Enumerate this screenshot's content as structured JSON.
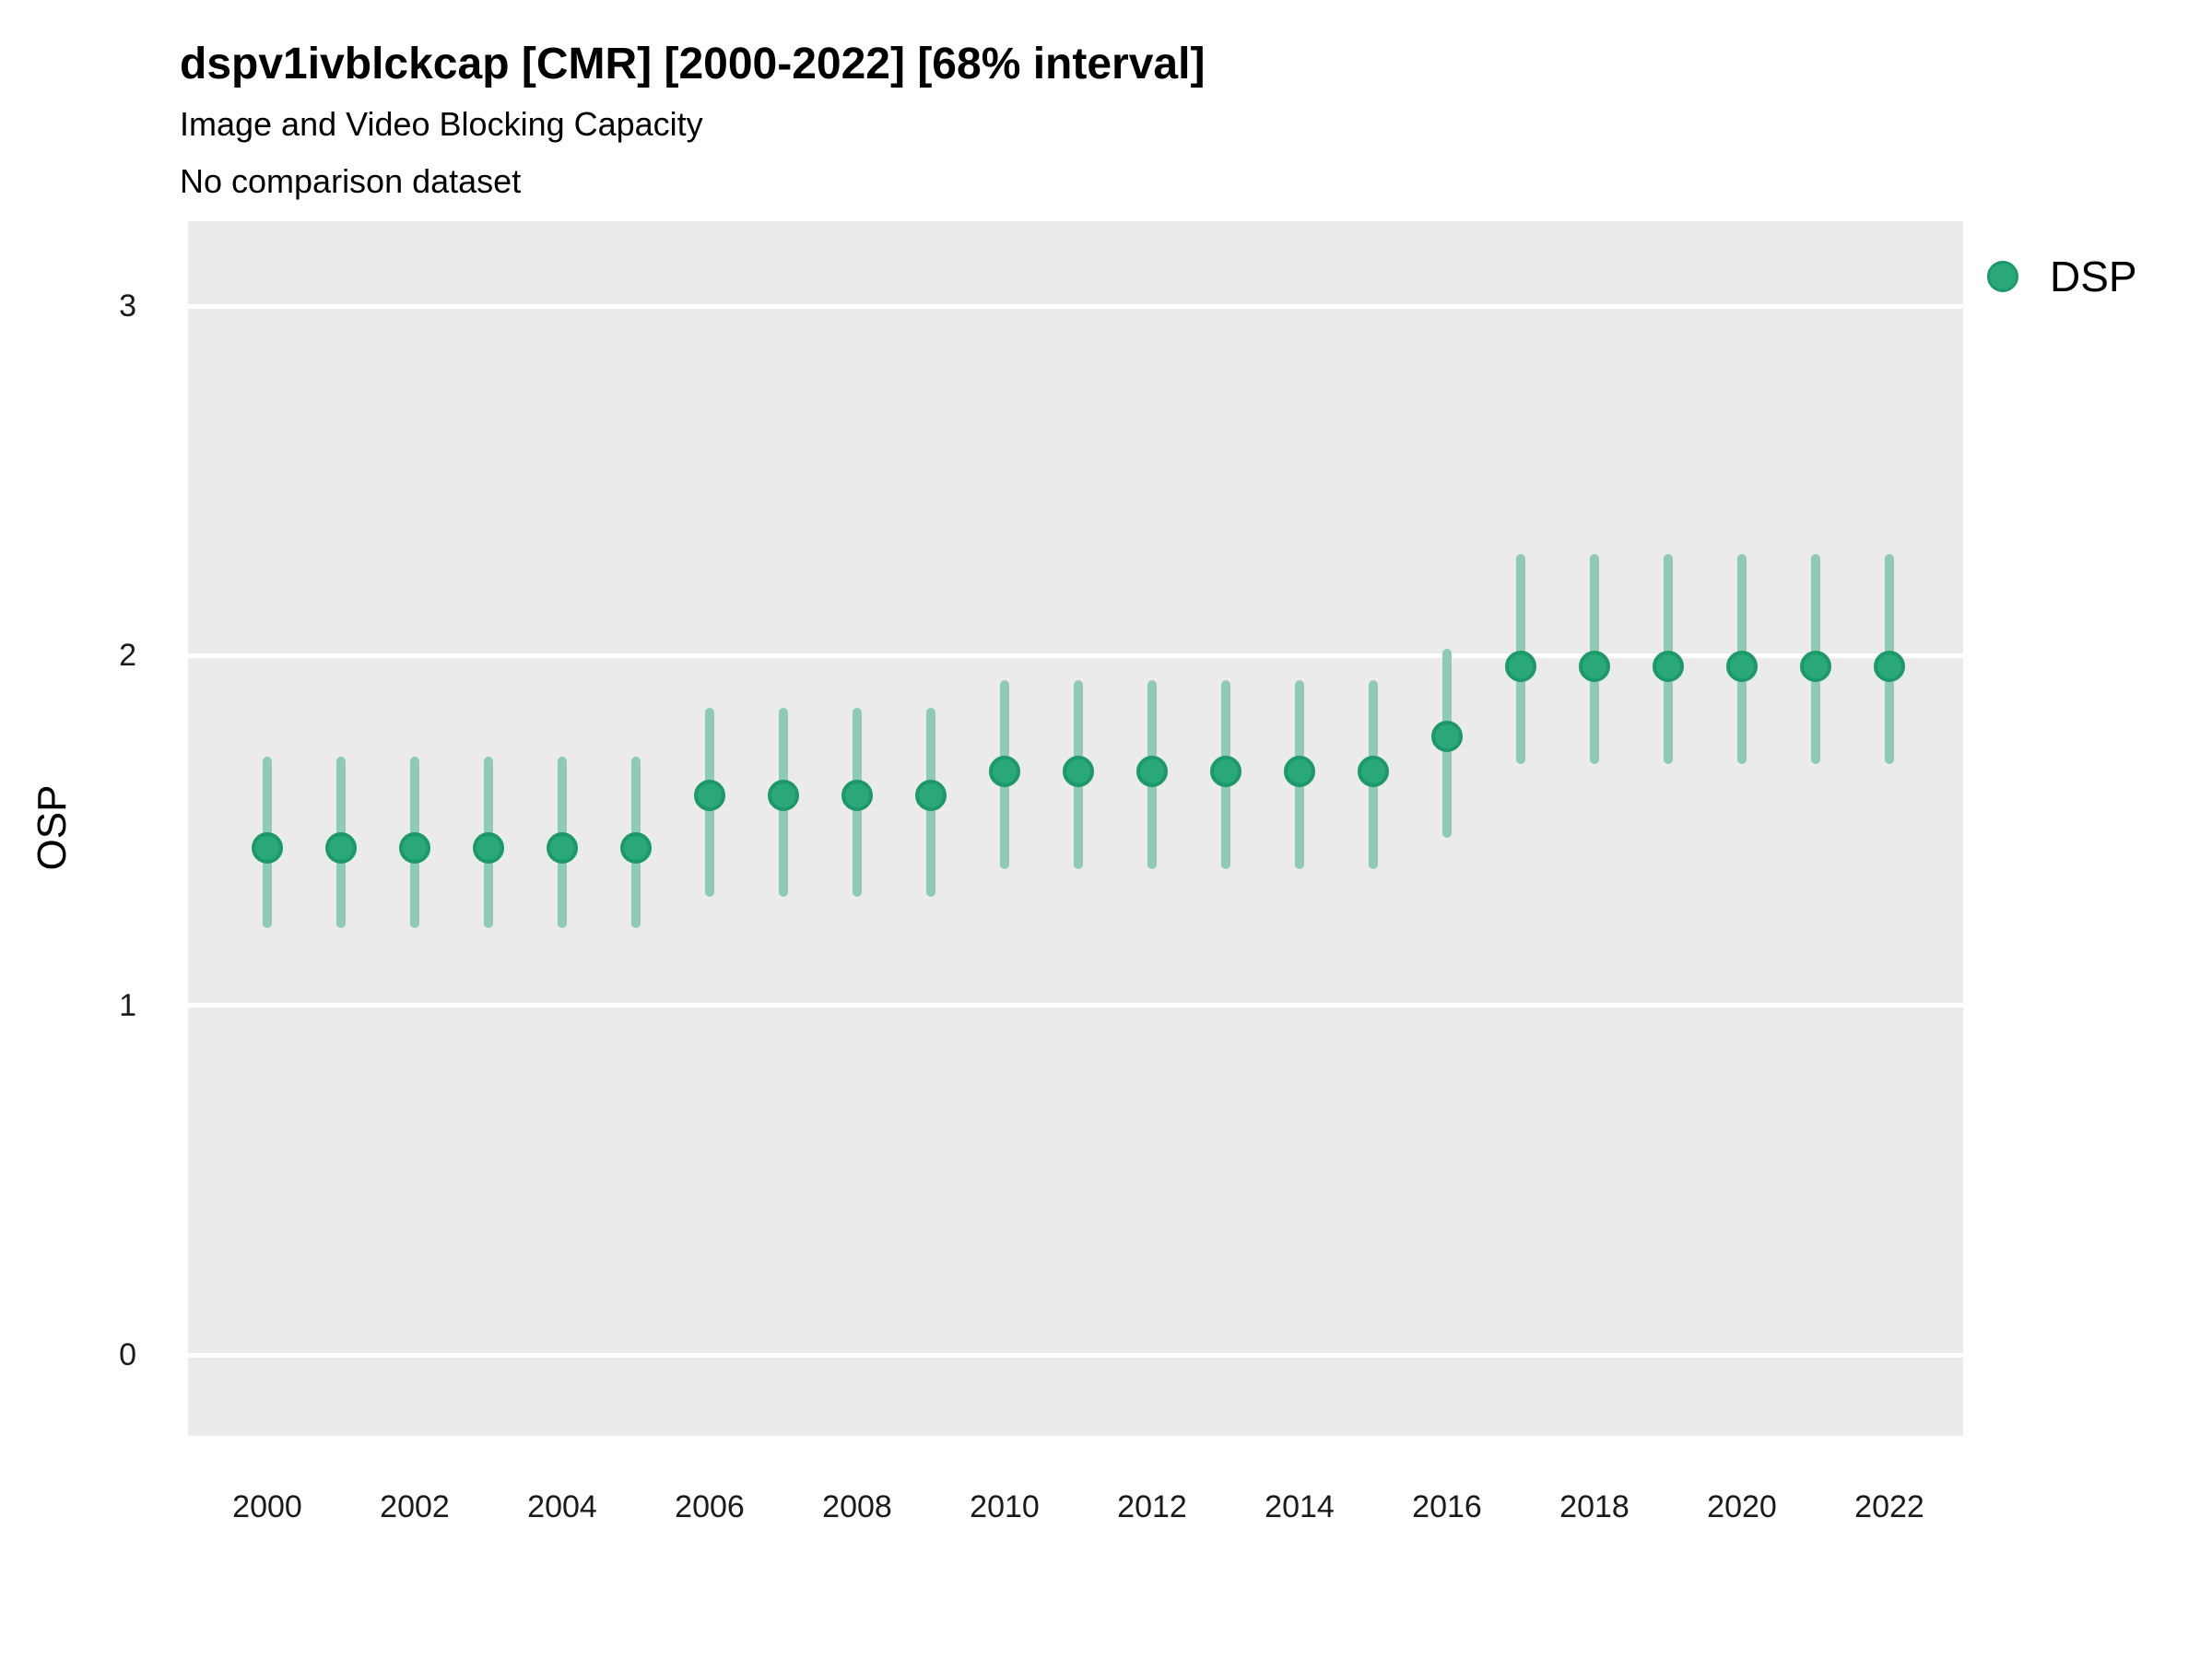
{
  "header": {
    "title": "dspv1ivblckcap [CMR] [2000-2022] [68% interval]",
    "subtitle": "Image and Video Blocking Capacity",
    "note": "No comparison dataset"
  },
  "axes": {
    "y_title": "OSP",
    "y_ticks": [
      3,
      2,
      1,
      0
    ],
    "x_tick_labels": [
      "2000",
      "2002",
      "2004",
      "2006",
      "2008",
      "2010",
      "2012",
      "2014",
      "2016",
      "2018",
      "2020",
      "2022"
    ]
  },
  "legend": {
    "position": "right",
    "entries": [
      {
        "label": "DSP",
        "color": "#2aa878"
      }
    ]
  },
  "colors": {
    "panel_background": "#ebebeb",
    "gridline": "#ffffff",
    "point_fill": "#2aa878",
    "point_stroke": "#1d9868",
    "interval_line": "#8ecbb2",
    "text": "#000000"
  },
  "chart_data": {
    "type": "scatter",
    "subtype": "pointrange",
    "title": "dspv1ivblckcap [CMR] [2000-2022] [68% interval]",
    "subtitle": "Image and Video Blocking Capacity",
    "note": "No comparison dataset",
    "xlabel": "",
    "ylabel": "OSP",
    "interval": "68%",
    "grid": "horizontal major gridlines only, white on gray panel",
    "legend_position": "right",
    "ylim": [
      -0.23,
      3.24
    ],
    "y_ticks": [
      0,
      1,
      2,
      3
    ],
    "x": [
      2000,
      2001,
      2002,
      2003,
      2004,
      2005,
      2006,
      2007,
      2008,
      2009,
      2010,
      2011,
      2012,
      2013,
      2014,
      2015,
      2016,
      2017,
      2018,
      2019,
      2020,
      2021,
      2022
    ],
    "series": [
      {
        "name": "DSP",
        "color": "#2aa878",
        "interval_color": "#8ecbb2",
        "points": [
          {
            "x": 2000,
            "y": 1.45,
            "lo": 1.22,
            "hi": 1.71
          },
          {
            "x": 2001,
            "y": 1.45,
            "lo": 1.22,
            "hi": 1.71
          },
          {
            "x": 2002,
            "y": 1.45,
            "lo": 1.22,
            "hi": 1.71
          },
          {
            "x": 2003,
            "y": 1.45,
            "lo": 1.22,
            "hi": 1.71
          },
          {
            "x": 2004,
            "y": 1.45,
            "lo": 1.22,
            "hi": 1.71
          },
          {
            "x": 2005,
            "y": 1.45,
            "lo": 1.22,
            "hi": 1.71
          },
          {
            "x": 2006,
            "y": 1.6,
            "lo": 1.31,
            "hi": 1.85
          },
          {
            "x": 2007,
            "y": 1.6,
            "lo": 1.31,
            "hi": 1.85
          },
          {
            "x": 2008,
            "y": 1.6,
            "lo": 1.31,
            "hi": 1.85
          },
          {
            "x": 2009,
            "y": 1.6,
            "lo": 1.31,
            "hi": 1.85
          },
          {
            "x": 2010,
            "y": 1.67,
            "lo": 1.39,
            "hi": 1.93
          },
          {
            "x": 2011,
            "y": 1.67,
            "lo": 1.39,
            "hi": 1.93
          },
          {
            "x": 2012,
            "y": 1.67,
            "lo": 1.39,
            "hi": 1.93
          },
          {
            "x": 2013,
            "y": 1.67,
            "lo": 1.39,
            "hi": 1.93
          },
          {
            "x": 2014,
            "y": 1.67,
            "lo": 1.39,
            "hi": 1.93
          },
          {
            "x": 2015,
            "y": 1.67,
            "lo": 1.39,
            "hi": 1.93
          },
          {
            "x": 2016,
            "y": 1.77,
            "lo": 1.48,
            "hi": 2.02
          },
          {
            "x": 2017,
            "y": 1.97,
            "lo": 1.69,
            "hi": 2.29
          },
          {
            "x": 2018,
            "y": 1.97,
            "lo": 1.69,
            "hi": 2.29
          },
          {
            "x": 2019,
            "y": 1.97,
            "lo": 1.69,
            "hi": 2.29
          },
          {
            "x": 2020,
            "y": 1.97,
            "lo": 1.69,
            "hi": 2.29
          },
          {
            "x": 2021,
            "y": 1.97,
            "lo": 1.69,
            "hi": 2.29
          },
          {
            "x": 2022,
            "y": 1.97,
            "lo": 1.69,
            "hi": 2.29
          }
        ]
      }
    ]
  }
}
